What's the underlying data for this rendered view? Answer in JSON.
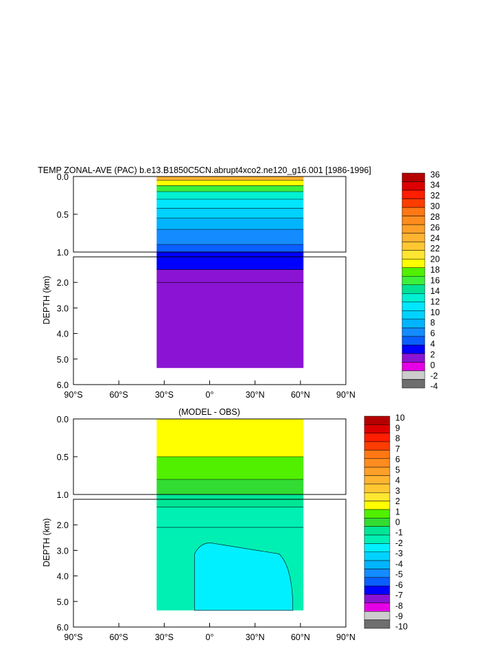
{
  "colors": {
    "upper_scale": [
      "#6e6e6e",
      "#cccccc",
      "#e600e6",
      "#8b14d4",
      "#0000ff",
      "#0a5fff",
      "#148cff",
      "#00b4ff",
      "#00d2ff",
      "#00e6ff",
      "#00f0d2",
      "#00e196",
      "#3cf03c",
      "#50f000",
      "#ffff00",
      "#ffe632",
      "#ffc832",
      "#ffb432",
      "#ffa028",
      "#ff8c1e",
      "#ff7814",
      "#ff3c00",
      "#ff1e00",
      "#dc0000",
      "#b40000"
    ],
    "lower_scale": [
      "#6e6e6e",
      "#cccccc",
      "#e600e6",
      "#8b14d4",
      "#0000ff",
      "#0a5fff",
      "#148cff",
      "#00b4ff",
      "#00d2ff",
      "#00f0ff",
      "#00f0b4",
      "#00e696",
      "#32dc32",
      "#50f000",
      "#ffff00",
      "#ffe632",
      "#ffc832",
      "#ffb432",
      "#ffa028",
      "#ff8c1e",
      "#ff7814",
      "#ff3c00",
      "#ff1e00",
      "#dc0000",
      "#b40000"
    ]
  },
  "chart_data": [
    {
      "type": "heatmap",
      "title": "TEMP ZONAL-AVE (PAC) b.e13.B1850C5CN.abrupt4xco2.ne120_g16.001 [1986-1996]",
      "ylabel": "DEPTH (km)",
      "xticks": [
        "90°S",
        "60°S",
        "30°S",
        "0°",
        "30°N",
        "60°N",
        "90°N"
      ],
      "x_range_deg": [
        -90,
        90
      ],
      "yticks_upper": [
        "0.0",
        "0.5",
        "1.0"
      ],
      "yticks_lower": [
        "2.0",
        "3.0",
        "4.0",
        "5.0",
        "6.0"
      ],
      "y_range_km": [
        0,
        6
      ],
      "panel_split_km": 1.0,
      "colorbar_labels": [
        "36",
        "34",
        "32",
        "30",
        "28",
        "26",
        "24",
        "22",
        "20",
        "18",
        "16",
        "14",
        "12",
        "10",
        "8",
        "6",
        "4",
        "2",
        "0",
        "-2",
        "-4"
      ],
      "data_extent_lat": [
        -35,
        62
      ],
      "bands_upper_km": [
        {
          "depth": 0.05,
          "value": 29
        },
        {
          "depth": 0.12,
          "value": 23
        },
        {
          "depth": 0.2,
          "value": 19
        },
        {
          "depth": 0.3,
          "value": 15
        },
        {
          "depth": 0.42,
          "value": 13
        },
        {
          "depth": 0.55,
          "value": 11
        },
        {
          "depth": 0.7,
          "value": 9
        },
        {
          "depth": 0.9,
          "value": 7
        },
        {
          "depth": 1.0,
          "value": 5
        }
      ],
      "bands_lower_km": [
        {
          "depth": 1.5,
          "value": 3
        },
        {
          "depth": 2.0,
          "value": 1
        },
        {
          "depth": 5.35,
          "value": 1
        }
      ]
    },
    {
      "type": "heatmap",
      "title": "(MODEL - OBS)",
      "ylabel": "DEPTH (km)",
      "xticks": [
        "90°S",
        "60°S",
        "30°S",
        "0°",
        "30°N",
        "60°N",
        "90°N"
      ],
      "x_range_deg": [
        -90,
        90
      ],
      "yticks_upper": [
        "0.0",
        "0.5",
        "1.0"
      ],
      "yticks_lower": [
        "2.0",
        "3.0",
        "4.0",
        "5.0",
        "6.0"
      ],
      "y_range_km": [
        0,
        6
      ],
      "panel_split_km": 1.0,
      "colorbar_labels": [
        "10",
        "9",
        "8",
        "7",
        "6",
        "5",
        "4",
        "3",
        "2",
        "1",
        "0",
        "-1",
        "-2",
        "-3",
        "-4",
        "-5",
        "-6",
        "-7",
        "-8",
        "-9",
        "-10"
      ],
      "data_extent_lat": [
        -35,
        62
      ],
      "bands_upper_km": [
        {
          "depth": 0.5,
          "value": 3.5
        },
        {
          "depth": 0.8,
          "value": 2.5
        },
        {
          "depth": 1.0,
          "value": 1.5
        }
      ],
      "bands_lower_km": [
        {
          "depth": 1.3,
          "value": 0.5
        },
        {
          "depth": 2.1,
          "value": -0.5
        },
        {
          "depth": 5.35,
          "value": -0.5
        }
      ],
      "anomaly_region": {
        "lat": [
          -10,
          55
        ],
        "depth_km": [
          2.6,
          5.35
        ],
        "value": -1.5
      }
    }
  ]
}
